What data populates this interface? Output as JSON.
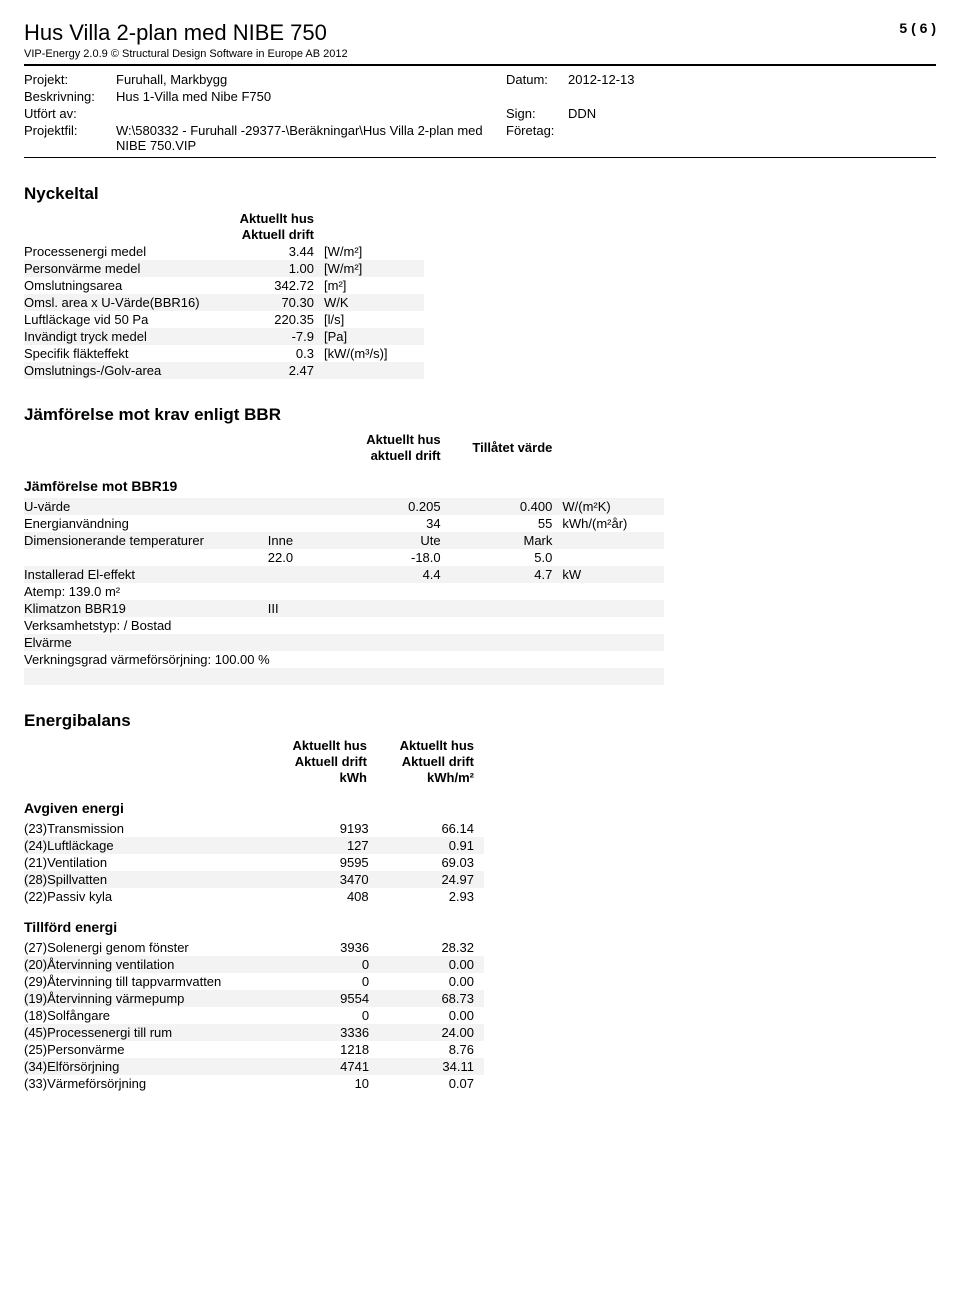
{
  "header": {
    "title": "Hus Villa 2-plan med NIBE 750",
    "subtitle": "VIP-Energy 2.0.9 © Structural Design Software in Europe AB 2012",
    "page": "5 ( 6 )"
  },
  "meta": {
    "projekt_label": "Projekt:",
    "projekt": "Furuhall, Markbygg",
    "datum_label": "Datum:",
    "datum": "2012-12-13",
    "beskrivning_label": "Beskrivning:",
    "beskrivning": "Hus 1-Villa med Nibe F750",
    "utfort_label": "Utfört av:",
    "sign_label": "Sign:",
    "sign": "DDN",
    "projektfil_label": "Projektfil:",
    "projektfil": "W:\\580332 - Furuhall -29377-\\Beräkningar\\Hus Villa 2-plan med NIBE 750.VIP",
    "foretag_label": "Företag:"
  },
  "nyckeltal": {
    "title": "Nyckeltal",
    "head1": "Aktuellt hus",
    "head2": "Aktuell drift",
    "rows": [
      {
        "label": "Processenergi medel",
        "val": "3.44",
        "unit": "[W/m²]"
      },
      {
        "label": "Personvärme medel",
        "val": "1.00",
        "unit": "[W/m²]"
      },
      {
        "label": "Omslutningsarea",
        "val": "342.72",
        "unit": "[m²]"
      },
      {
        "label": "Omsl. area x U-Värde(BBR16)",
        "val": "70.30",
        "unit": "W/K"
      },
      {
        "label": "Luftläckage vid 50 Pa",
        "val": "220.35",
        "unit": "[l/s]"
      },
      {
        "label": "Invändigt tryck medel",
        "val": "-7.9",
        "unit": "[Pa]"
      },
      {
        "label": "Specifik fläkteffekt",
        "val": "0.3",
        "unit": "[kW/(m³/s)]"
      },
      {
        "label": "Omslutnings-/Golv-area",
        "val": "2.47",
        "unit": ""
      }
    ]
  },
  "bbr": {
    "title": "Jämförelse mot krav enligt BBR",
    "head_a1": "Aktuellt hus",
    "head_a2": "aktuell drift",
    "head_b": "Tillåtet värde",
    "subhead": "Jämförelse mot BBR19",
    "uvarde_label": "U-värde",
    "uvarde_akt": "0.205",
    "uvarde_till": "0.400",
    "uvarde_unit": "W/(m²K)",
    "energi_label": "Energianvändning",
    "energi_akt": "34",
    "energi_till": "55",
    "energi_unit": "kWh/(m²år)",
    "dimtemp_label": "Dimensionerande temperaturer",
    "inne": "Inne",
    "ute": "Ute",
    "mark": "Mark",
    "inne_v": "22.0",
    "ute_v": "-18.0",
    "mark_v": "5.0",
    "insteffekt_label": "Installerad El-effekt",
    "insteffekt_akt": "4.4",
    "insteffekt_till": "4.7",
    "insteffekt_unit": "kW",
    "atemp": "Atemp: 139.0 m²",
    "klimatzon_label": "Klimatzon BBR19",
    "klimatzon_val": "III",
    "verksamhet": "Verksamhetstyp: / Bostad",
    "elvarme": "Elvärme",
    "verkningsgrad": "Verkningsgrad värmeförsörjning: 100.00 %"
  },
  "energibalans": {
    "title": "Energibalans",
    "head_c1a": "Aktuellt hus",
    "head_c1b": "Aktuell drift",
    "head_c1c": "kWh",
    "head_c2a": "Aktuellt hus",
    "head_c2b": "Aktuell drift",
    "head_c2c": "kWh/m²",
    "avgiven_h": "Avgiven energi",
    "avgiven": [
      {
        "label": "(23)Transmission",
        "kwh": "9193",
        "kwhm2": "66.14"
      },
      {
        "label": "(24)Luftläckage",
        "kwh": "127",
        "kwhm2": "0.91"
      },
      {
        "label": "(21)Ventilation",
        "kwh": "9595",
        "kwhm2": "69.03"
      },
      {
        "label": "(28)Spillvatten",
        "kwh": "3470",
        "kwhm2": "24.97"
      },
      {
        "label": "(22)Passiv kyla",
        "kwh": "408",
        "kwhm2": "2.93"
      }
    ],
    "tillford_h": "Tillförd energi",
    "tillford": [
      {
        "label": "(27)Solenergi genom fönster",
        "kwh": "3936",
        "kwhm2": "28.32"
      },
      {
        "label": "(20)Återvinning ventilation",
        "kwh": "0",
        "kwhm2": "0.00"
      },
      {
        "label": "(29)Återvinning till tappvarmvatten",
        "kwh": "0",
        "kwhm2": "0.00"
      },
      {
        "label": "(19)Återvinning värmepump",
        "kwh": "9554",
        "kwhm2": "68.73"
      },
      {
        "label": "(18)Solfångare",
        "kwh": "0",
        "kwhm2": "0.00"
      },
      {
        "label": "(45)Processenergi till rum",
        "kwh": "3336",
        "kwhm2": "24.00"
      },
      {
        "label": "(25)Personvärme",
        "kwh": "1218",
        "kwhm2": "8.76"
      },
      {
        "label": "(34)Elförsörjning",
        "kwh": "4741",
        "kwhm2": "34.11"
      },
      {
        "label": "(33)Värmeförsörjning",
        "kwh": "10",
        "kwhm2": "0.07"
      }
    ]
  },
  "colors": {
    "alt_row": "#f3f3f3"
  }
}
